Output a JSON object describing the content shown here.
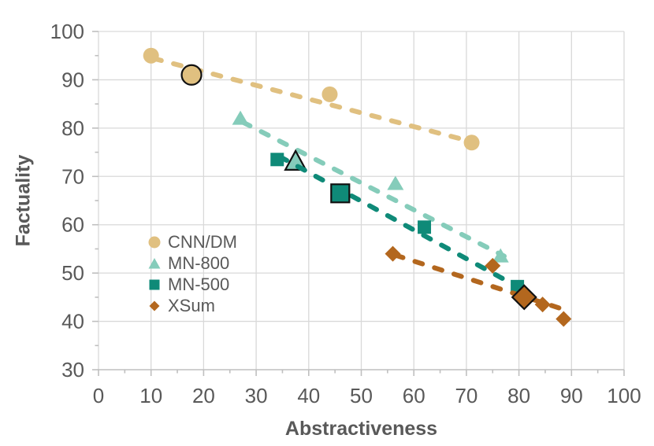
{
  "chart_data": {
    "type": "scatter",
    "title": "",
    "xlabel": "Abstractiveness",
    "ylabel": "Factuality",
    "xlim": [
      0,
      100
    ],
    "ylim": [
      30,
      100
    ],
    "x_ticks": [
      0,
      10,
      20,
      30,
      40,
      50,
      60,
      70,
      80,
      90,
      100
    ],
    "y_ticks": [
      30,
      40,
      50,
      60,
      70,
      80,
      90,
      100
    ],
    "minor_tick_step": 5,
    "grid": true,
    "legend_position": "inside-left",
    "colors": {
      "text": "#595959",
      "grid": "#d9d9d9",
      "axis": "#bfbfbf",
      "background": "#ffffff",
      "highlight_outline": "#111111"
    },
    "series": [
      {
        "name": "CNN/DM",
        "marker": "circle",
        "color": "#e0c080",
        "points": [
          [
            10,
            95
          ],
          [
            17.7,
            91
          ],
          [
            44,
            87
          ],
          [
            71,
            77
          ]
        ],
        "highlight_index": 1,
        "trendline": {
          "x1": 10.5,
          "y1": 94.4,
          "x2": 71.3,
          "y2": 77.1
        }
      },
      {
        "name": "MN-800",
        "marker": "triangle",
        "color": "#85ccba",
        "points": [
          [
            27,
            82
          ],
          [
            37.5,
            73
          ],
          [
            56.5,
            68.5
          ],
          [
            76.5,
            53.5
          ]
        ],
        "highlight_index": 1,
        "trendline": {
          "x1": 27.5,
          "y1": 81.2,
          "x2": 77.2,
          "y2": 53.5
        }
      },
      {
        "name": "MN-500",
        "marker": "square",
        "color": "#0f8a78",
        "points": [
          [
            34,
            73.5
          ],
          [
            46,
            66.5
          ],
          [
            62,
            59.5
          ],
          [
            79.7,
            47.2
          ]
        ],
        "highlight_index": 1,
        "trendline": {
          "x1": 34.5,
          "y1": 74.1,
          "x2": 80.2,
          "y2": 46.9
        }
      },
      {
        "name": "XSum",
        "marker": "diamond",
        "color": "#b3671e",
        "points": [
          [
            56,
            54
          ],
          [
            75,
            51.5
          ],
          [
            81,
            45
          ],
          [
            84.5,
            43.5
          ],
          [
            88.5,
            40.5
          ]
        ],
        "highlight_index": 2,
        "trendline": {
          "x1": 56.5,
          "y1": 53.7,
          "x2": 89,
          "y2": 42.3
        }
      }
    ]
  }
}
